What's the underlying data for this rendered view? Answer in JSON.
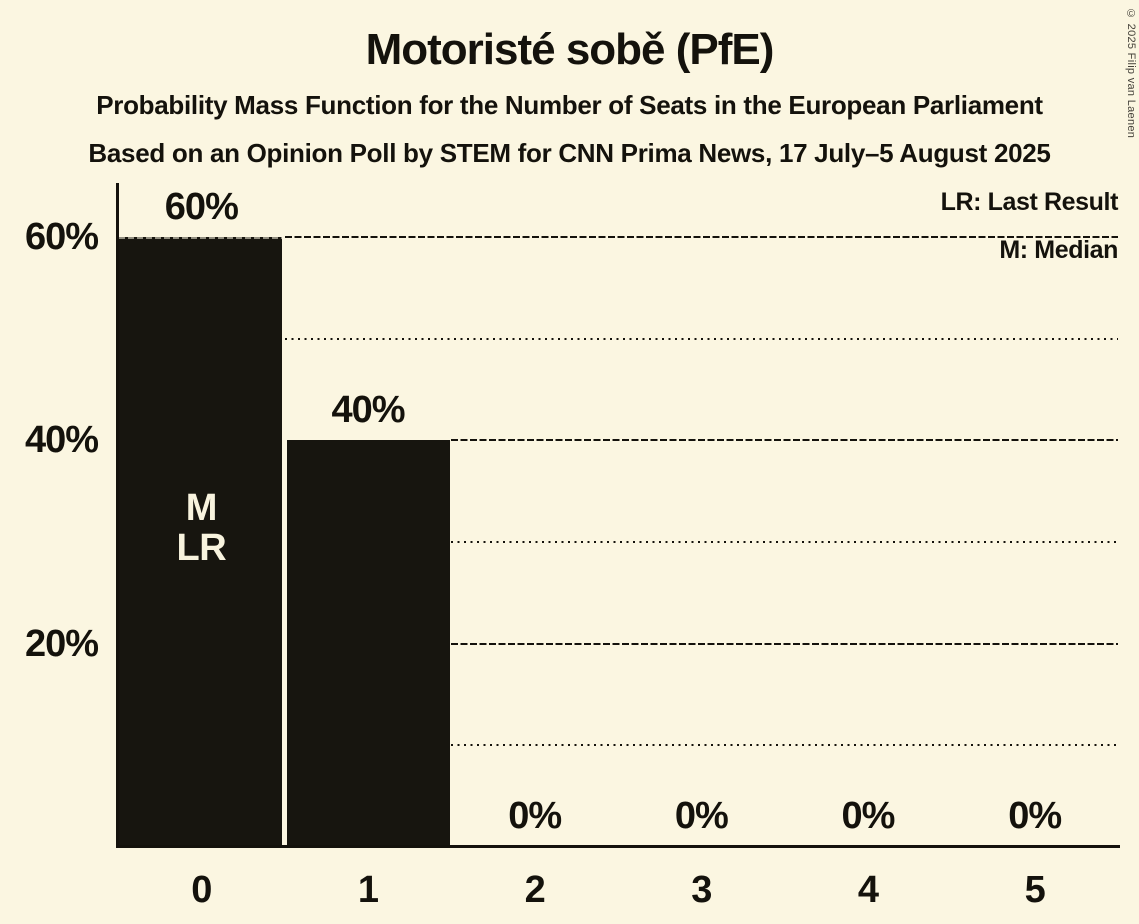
{
  "title": "Motoristé sobě (PfE)",
  "subtitles": [
    "Probability Mass Function for the Number of Seats in the European Parliament",
    "Based on an Opinion Poll by STEM for CNN Prima News, 17 July–5 August 2025"
  ],
  "legend": {
    "last_result": "LR: Last Result",
    "median": "M: Median"
  },
  "copyright": "© 2025 Filip van Laenen",
  "colors": {
    "background": "#FBF6E1",
    "bar": "#17150F",
    "ink": "#14120C",
    "bar_label_text": "#F8F3DE",
    "copyright_text": "#45423A"
  },
  "chart_data": {
    "type": "bar",
    "title": "Motoristé sobě (PfE)",
    "categories": [
      "0",
      "1",
      "2",
      "3",
      "4",
      "5"
    ],
    "values": [
      60,
      40,
      0,
      0,
      0,
      0
    ],
    "bar_labels": [
      "60%",
      "40%",
      "0%",
      "0%",
      "0%",
      "0%"
    ],
    "y_axis": {
      "range": [
        0,
        65
      ],
      "major_ticks": [
        20,
        40,
        60
      ],
      "major_tick_labels": [
        "20%",
        "40%",
        "60%"
      ],
      "minor_gridlines": [
        10,
        30,
        50
      ]
    },
    "annotations": [
      {
        "category_index": 0,
        "lines": [
          "M",
          "LR"
        ]
      }
    ],
    "legend_position": "top-right",
    "grid": "horizontal, drawn only to the right of bars taller than the line"
  }
}
